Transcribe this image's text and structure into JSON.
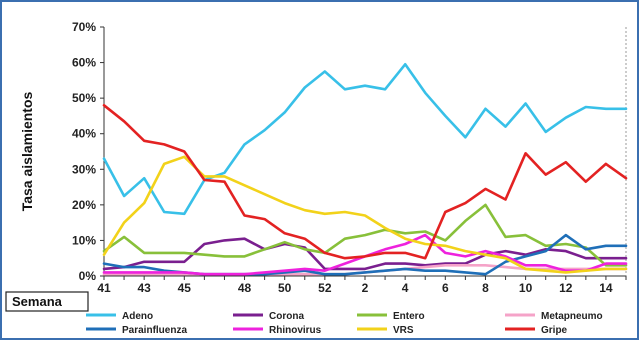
{
  "chart_data": {
    "type": "line",
    "ylabel": "Tasa aislamientos",
    "xlabel": "Semana",
    "ylim": [
      0,
      70
    ],
    "yticks": [
      "0%",
      "10%",
      "20%",
      "30%",
      "40%",
      "50%",
      "60%",
      "70%"
    ],
    "categories": [
      "41",
      "42",
      "43",
      "44",
      "45",
      "46",
      "47",
      "48",
      "49",
      "50",
      "51",
      "52",
      "1",
      "2",
      "3",
      "4",
      "5",
      "6",
      "7",
      "8",
      "9",
      "10",
      "11",
      "12",
      "13",
      "14",
      "15"
    ],
    "xtick_labels": [
      "41",
      "43",
      "45",
      "48",
      "50",
      "52",
      "2",
      "4",
      "6",
      "8",
      "10",
      "12",
      "14"
    ],
    "grid": false,
    "legend": "bottom",
    "series": [
      {
        "name": "Adeno",
        "color": "#38c0e8",
        "values": [
          33,
          22.5,
          27.5,
          18,
          17.5,
          27,
          29,
          37,
          41,
          46,
          53,
          57.5,
          52.5,
          53.5,
          52.5,
          59.5,
          51.5,
          45,
          39,
          47,
          42,
          48.5,
          40.5,
          44.5,
          47.5,
          47,
          47
        ]
      },
      {
        "name": "Corona",
        "color": "#7a1f8f",
        "values": [
          2,
          2.5,
          4,
          4,
          4,
          9,
          10,
          10.5,
          7.5,
          9,
          8,
          2,
          2,
          2,
          3.5,
          3.5,
          3,
          3.5,
          3.5,
          6,
          7,
          6,
          7.5,
          7,
          5,
          5,
          5
        ]
      },
      {
        "name": "Entero",
        "color": "#88c03a",
        "values": [
          7,
          11,
          6.5,
          6.5,
          6.5,
          6,
          5.5,
          5.5,
          7.5,
          9.5,
          7.5,
          6.5,
          10.5,
          11.5,
          13,
          12,
          12.5,
          10,
          15.5,
          20,
          11,
          11.5,
          8.5,
          9,
          8,
          3,
          3
        ]
      },
      {
        "name": "Metapneumo",
        "color": "#f5a3c8",
        "values": [
          0.5,
          0.5,
          0.5,
          0.5,
          0.5,
          0.5,
          0.5,
          0.5,
          0.5,
          0.5,
          0.5,
          0.5,
          0.5,
          1,
          1.5,
          2,
          2.5,
          3,
          3,
          3,
          2.5,
          2,
          2,
          2,
          2,
          2,
          2
        ]
      },
      {
        "name": "Parainfluenza",
        "color": "#1f6fb8",
        "values": [
          3.5,
          2.5,
          2.5,
          1.5,
          1,
          0.5,
          0.5,
          0.5,
          0.5,
          1,
          1.5,
          0.5,
          0.5,
          1,
          1.5,
          2,
          1.5,
          1.5,
          1,
          0.5,
          4,
          5.5,
          7,
          11.5,
          7.5,
          8.5,
          8.5
        ]
      },
      {
        "name": "Rhinovirus",
        "color": "#ee22dd",
        "values": [
          1,
          1,
          1,
          1,
          1,
          0.5,
          0.5,
          0.5,
          1,
          1.5,
          2,
          1.5,
          3.5,
          5.5,
          7.5,
          9,
          11.5,
          6.5,
          5.5,
          7,
          5.5,
          3,
          3,
          1.5,
          1.5,
          3.5,
          3.5
        ]
      },
      {
        "name": "VRS",
        "color": "#f2d21a",
        "values": [
          6,
          15,
          20.5,
          31.5,
          33.5,
          28,
          28,
          25.5,
          23,
          20.5,
          18.5,
          17.5,
          18,
          17,
          13.5,
          10.5,
          9,
          8.5,
          7,
          6,
          5,
          2,
          1.5,
          1,
          1.5,
          2,
          2
        ]
      },
      {
        "name": "Gripe",
        "color": "#e32222",
        "values": [
          48,
          43.5,
          38,
          37,
          35,
          27,
          26.5,
          17,
          16,
          12,
          10.5,
          6.5,
          5,
          5.5,
          6.5,
          6.5,
          5,
          18,
          20.5,
          24.5,
          21.5,
          34.5,
          28.5,
          32,
          26.5,
          31.5,
          27.5
        ]
      }
    ]
  }
}
